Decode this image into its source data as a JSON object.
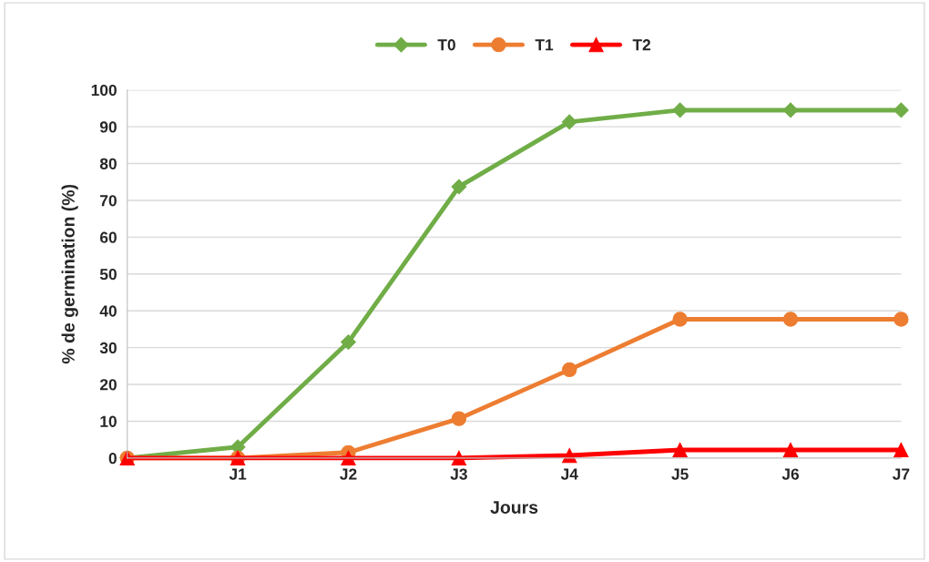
{
  "chart_data": {
    "type": "line",
    "xlabel": "Jours",
    "ylabel": "% de germination (%)",
    "categories": [
      null,
      "J1",
      "J2",
      "J3",
      "J4",
      "J5",
      "J6",
      "J7"
    ],
    "ylim": [
      0,
      100
    ],
    "yticks": [
      0,
      10,
      20,
      30,
      40,
      50,
      60,
      70,
      80,
      90,
      100
    ],
    "grid": "y",
    "legend": "top",
    "series": [
      {
        "name": "T0",
        "color": "#70ad47",
        "marker": "diamond",
        "values": [
          0,
          3,
          31.5,
          73.7,
          91.3,
          94.5,
          94.5,
          94.5
        ]
      },
      {
        "name": "T1",
        "color": "#ed7d31",
        "marker": "circle",
        "values": [
          0,
          0,
          1.5,
          10.7,
          24,
          37.7,
          37.7,
          37.7
        ]
      },
      {
        "name": "T2",
        "color": "#ff0000",
        "marker": "triangle",
        "values": [
          0,
          0,
          0,
          0,
          0.7,
          2.2,
          2.2,
          2.2
        ]
      }
    ]
  }
}
